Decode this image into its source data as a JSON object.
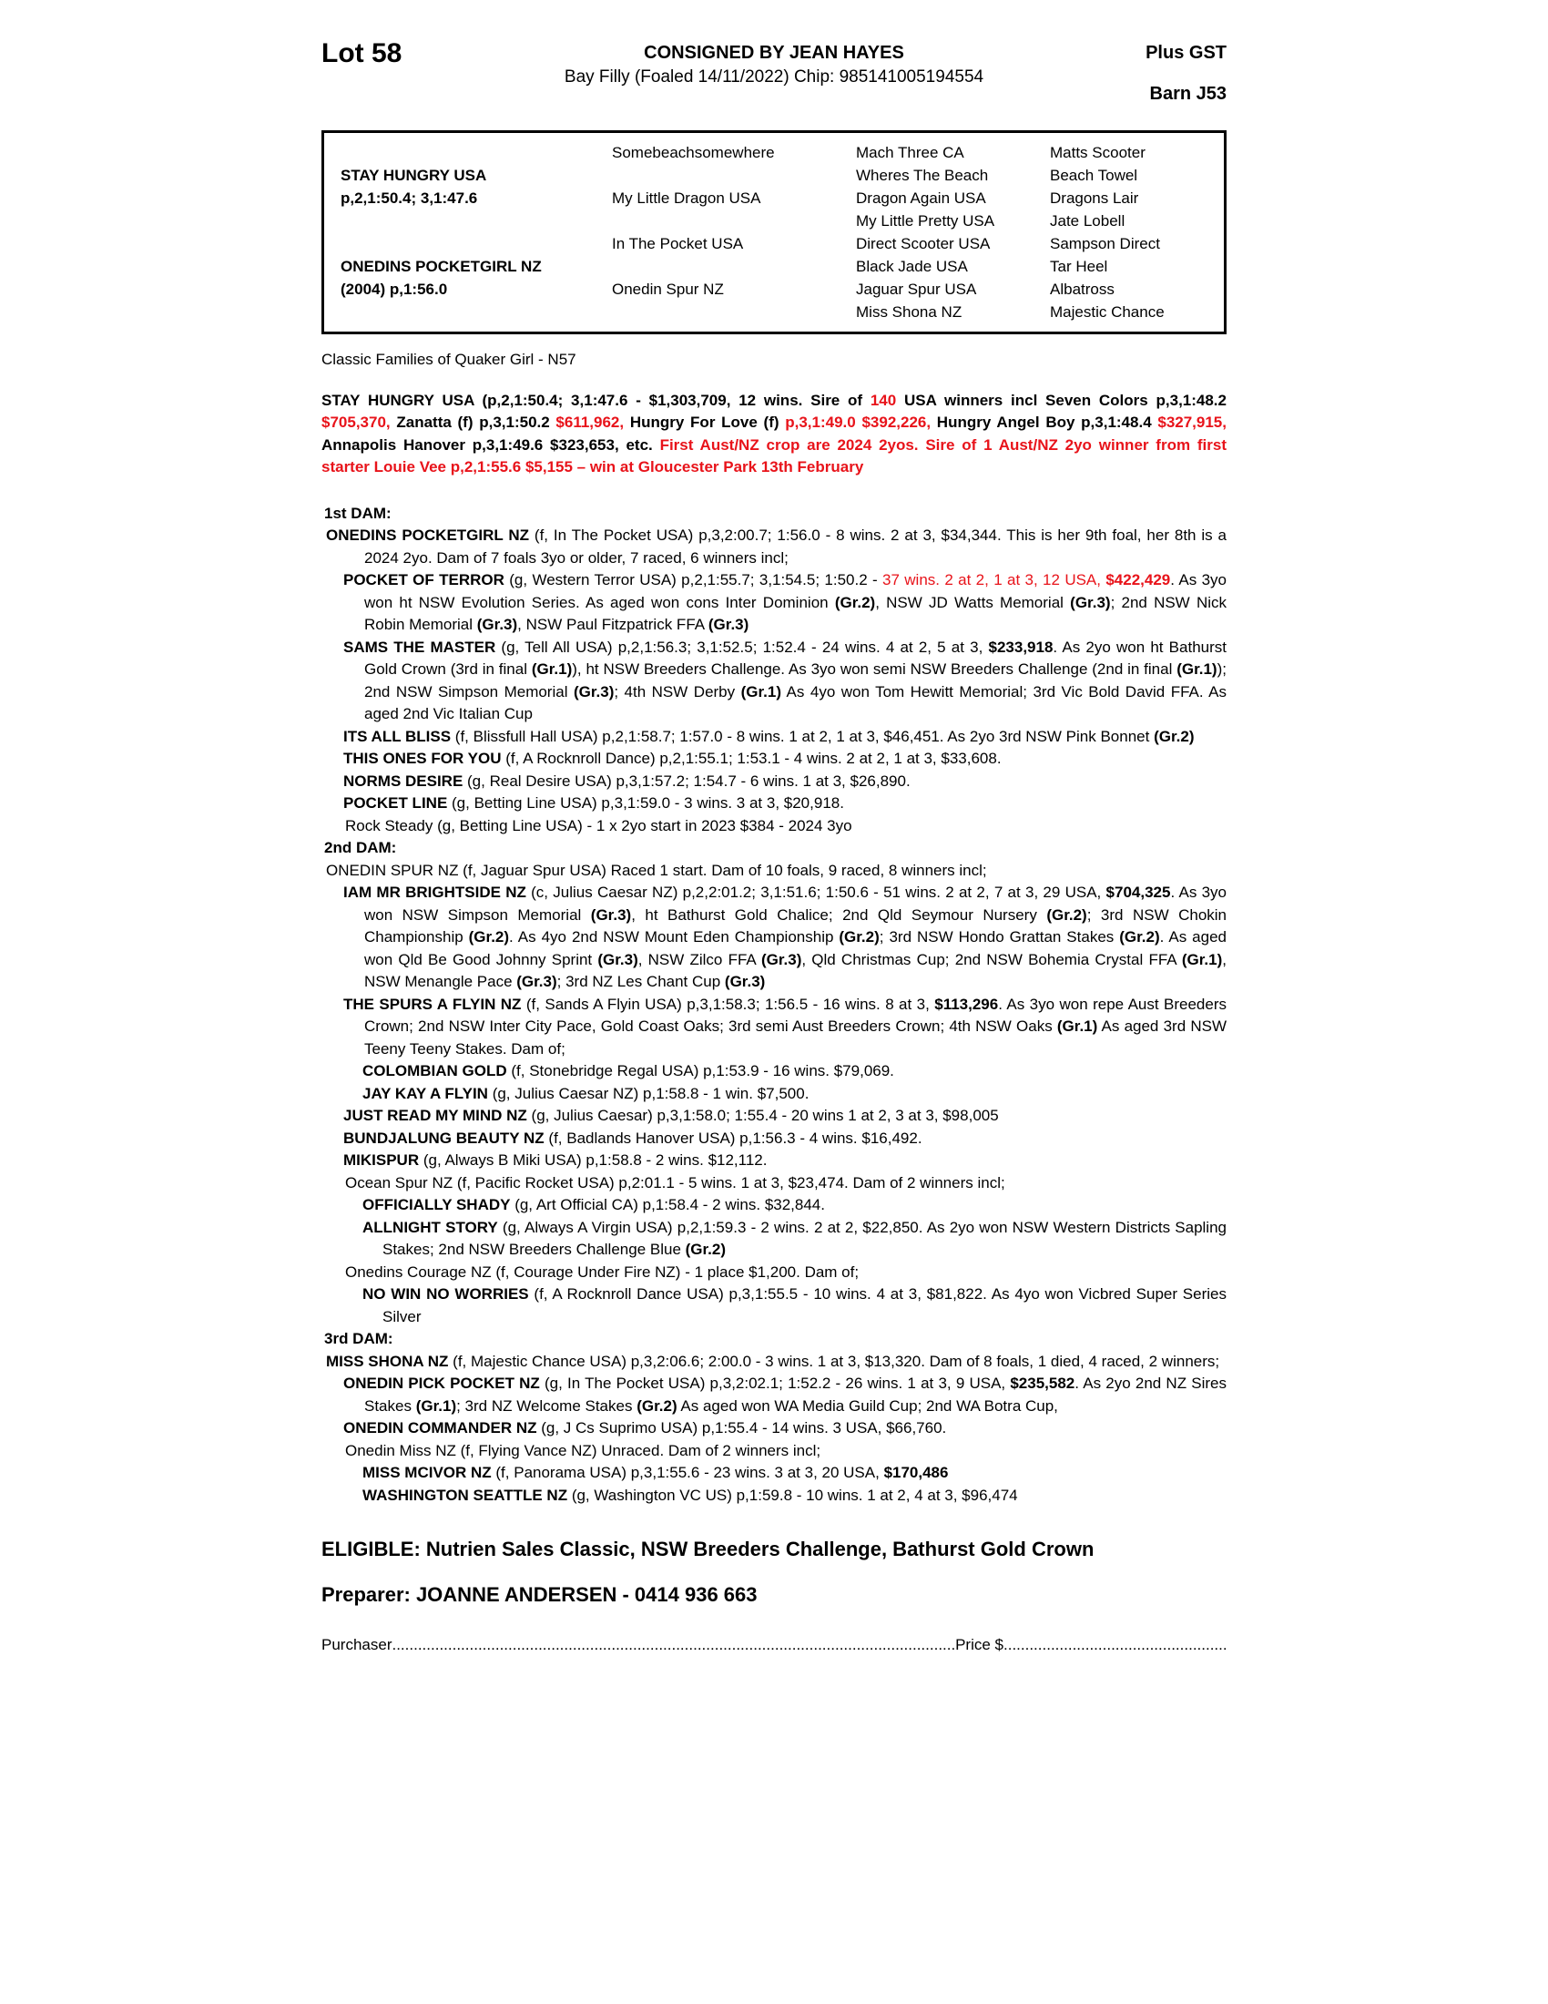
{
  "colors": {
    "accent_red": "#e8131a",
    "text": "#000000",
    "page_bg": "#ffffff"
  },
  "header": {
    "lot": "Lot 58",
    "consignor": "CONSIGNED BY JEAN HAYES",
    "gst": "Plus GST",
    "foal_info": "Bay Filly (Foaled 14/11/2022) Chip: 985141005194554",
    "barn": "Barn J53"
  },
  "pedigree": {
    "rows": [
      [
        "",
        "Somebeachsomewhere",
        "Mach Three CA",
        "Matts Scooter"
      ],
      [
        "STAY HUNGRY USA",
        "",
        "Wheres The Beach",
        "Beach Towel"
      ],
      [
        "p,2,1:50.4; 3,1:47.6",
        "My Little Dragon USA",
        "Dragon Again USA",
        "Dragons Lair"
      ],
      [
        "",
        "",
        "My Little Pretty USA",
        "Jate Lobell"
      ],
      [
        "",
        "In The Pocket USA",
        "Direct Scooter USA",
        "Sampson Direct"
      ],
      [
        "ONEDINS POCKETGIRL NZ",
        "",
        "Black Jade USA",
        "Tar Heel"
      ],
      [
        "(2004) p,1:56.0",
        "Onedin Spur NZ",
        "Jaguar Spur USA",
        "Albatross"
      ],
      [
        "",
        "",
        "Miss Shona NZ",
        "Majestic Chance"
      ]
    ]
  },
  "paragraphs": [
    {
      "n": "classic-families-line",
      "st": "",
      "s": [
        {
          "t": "Classic Families of Quaker Girl - N57"
        }
      ]
    },
    {
      "n": "sire-summary",
      "st": "sire just mt20",
      "s": [
        {
          "t": "STAY HUNGRY USA (p,2,1:50.4; 3,1:47.6 - $1,303,709, 12 wins. Sire of "
        },
        {
          "t": "140",
          "r": true
        },
        {
          "t": " USA winners incl Seven Colors p,3,1:48.2 "
        },
        {
          "t": "$705,370,",
          "r": true
        },
        {
          "t": " Zanatta (f) p,3,1:50.2 "
        },
        {
          "t": "$611,962,",
          "r": true
        },
        {
          "t": " Hungry For Love (f) "
        },
        {
          "t": "p,3,1:49.0 $392,226,",
          "r": true
        },
        {
          "t": " Hungry Angel Boy p,3,1:48.4 "
        },
        {
          "t": "$327,915,",
          "r": true
        },
        {
          "t": " Annapolis Hanover p,3,1:49.6 $323,653, etc. "
        },
        {
          "t": "First Aust/NZ crop are 2024 2yos. Sire of 1 Aust/NZ 2yo winner from first starter Louie Vee p,2,1:55.6 $5,155 – win at Gloucester Park 13th February",
          "r": true
        }
      ]
    },
    {
      "n": "dam1-heading",
      "st": "damhead mt26",
      "s": [
        {
          "t": "1st DAM:",
          "b": true
        }
      ]
    },
    {
      "n": "dam1-onedins-pocketgirl",
      "st": "L1 just",
      "s": [
        {
          "t": "ONEDINS POCKETGIRL NZ",
          "b": true
        },
        {
          "t": " (f, In The Pocket USA) p,3,2:00.7; 1:56.0 - 8 wins. 2 at 3, $34,344. This is her 9th foal, her 8th is a 2024 2yo. Dam of 7 foals 3yo or older, 7 raced, 6 winners incl;"
        }
      ]
    },
    {
      "n": "progeny-pocket-of-terror",
      "st": "L2 just",
      "s": [
        {
          "t": "POCKET OF TERROR",
          "b": true
        },
        {
          "t": " (g, Western Terror USA) p,2,1:55.7; 3,1:54.5; 1:50.2 - "
        },
        {
          "t": "37 wins. 2 at 2, 1 at 3, 12 USA, ",
          "r": true
        },
        {
          "t": "$422,429",
          "b": true,
          "r": true
        },
        {
          "t": ". As 3yo won ht NSW Evolution Series. As aged won cons Inter Dominion "
        },
        {
          "t": "(Gr.2)",
          "b": true
        },
        {
          "t": ", NSW JD Watts Memorial "
        },
        {
          "t": "(Gr.3)",
          "b": true
        },
        {
          "t": "; 2nd NSW Nick Robin Memorial "
        },
        {
          "t": "(Gr.3)",
          "b": true
        },
        {
          "t": ", NSW Paul Fitzpatrick FFA "
        },
        {
          "t": "(Gr.3)",
          "b": true
        }
      ]
    },
    {
      "n": "progeny-sams-the-master",
      "st": "L2 just",
      "s": [
        {
          "t": "SAMS THE MASTER",
          "b": true
        },
        {
          "t": " (g, Tell All USA) p,2,1:56.3; 3,1:52.5; 1:52.4 - 24 wins. 4 at 2, 5 at 3, "
        },
        {
          "t": "$233,918",
          "b": true
        },
        {
          "t": ". As 2yo won ht Bathurst Gold Crown (3rd in final "
        },
        {
          "t": "(Gr.1)",
          "b": true
        },
        {
          "t": "), ht NSW Breeders Challenge. As 3yo won semi NSW Breeders Challenge (2nd in final "
        },
        {
          "t": "(Gr.1)",
          "b": true
        },
        {
          "t": "); 2nd NSW Simpson Memorial "
        },
        {
          "t": "(Gr.3)",
          "b": true
        },
        {
          "t": "; 4th NSW Derby "
        },
        {
          "t": "(Gr.1)",
          "b": true
        },
        {
          "t": " As 4yo won Tom Hewitt Memorial; 3rd Vic Bold David FFA. As aged 2nd Vic Italian Cup"
        }
      ]
    },
    {
      "n": "progeny-its-all-bliss",
      "st": "L2 just",
      "s": [
        {
          "t": "ITS ALL BLISS",
          "b": true
        },
        {
          "t": " (f, Blissfull Hall USA) p,2,1:58.7; 1:57.0 - 8 wins. 1 at 2, 1 at 3, $46,451. As 2yo 3rd NSW Pink Bonnet "
        },
        {
          "t": "(Gr.2)",
          "b": true
        }
      ]
    },
    {
      "n": "progeny-this-ones-for-you",
      "st": "L2",
      "s": [
        {
          "t": "THIS ONES FOR YOU",
          "b": true
        },
        {
          "t": " (f, A Rocknroll Dance) p,2,1:55.1; 1:53.1 - 4 wins. 2 at 2, 1 at 3, $33,608."
        }
      ]
    },
    {
      "n": "progeny-norms-desire",
      "st": "L2",
      "s": [
        {
          "t": "NORMS DESIRE",
          "b": true
        },
        {
          "t": " (g, Real Desire USA) p,3,1:57.2; 1:54.7 - 6 wins. 1 at 3, $26,890."
        }
      ]
    },
    {
      "n": "progeny-pocket-line",
      "st": "L2",
      "s": [
        {
          "t": "POCKET LINE",
          "b": true
        },
        {
          "t": " (g, Betting Line USA) p,3,1:59.0 - 3 wins. 3 at 3, $20,918."
        }
      ]
    },
    {
      "n": "progeny-rock-steady",
      "st": "L2p",
      "s": [
        {
          "t": "Rock Steady (g, Betting Line USA) - 1 x 2yo start in 2023 $384 - 2024 3yo"
        }
      ]
    },
    {
      "n": "dam2-heading",
      "st": "damhead",
      "s": [
        {
          "t": "2nd DAM:",
          "b": true
        }
      ]
    },
    {
      "n": "dam2-onedin-spur",
      "st": "L1",
      "s": [
        {
          "t": "ONEDIN SPUR NZ (f, Jaguar Spur USA) Raced 1 start. Dam of 10 foals, 9 raced, 8 winners incl;"
        }
      ]
    },
    {
      "n": "progeny-iam-mr-brightside",
      "st": "L2 just",
      "s": [
        {
          "t": "IAM MR BRIGHTSIDE NZ",
          "b": true
        },
        {
          "t": " (c, Julius Caesar NZ) p,2,2:01.2; 3,1:51.6; 1:50.6 - 51 wins. 2 at 2, 7 at 3, 29 USA, "
        },
        {
          "t": "$704,325",
          "b": true
        },
        {
          "t": ". As 3yo won NSW Simpson Memorial "
        },
        {
          "t": "(Gr.3)",
          "b": true
        },
        {
          "t": ", ht Bathurst Gold Chalice; 2nd Qld Seymour Nursery "
        },
        {
          "t": "(Gr.2)",
          "b": true
        },
        {
          "t": "; 3rd NSW Chokin Championship "
        },
        {
          "t": "(Gr.2)",
          "b": true
        },
        {
          "t": ". As 4yo 2nd NSW Mount Eden Championship "
        },
        {
          "t": "(Gr.2)",
          "b": true
        },
        {
          "t": "; 3rd NSW Hondo Grattan Stakes "
        },
        {
          "t": "(Gr.2)",
          "b": true
        },
        {
          "t": ". As aged won Qld Be Good Johnny Sprint "
        },
        {
          "t": "(Gr.3)",
          "b": true
        },
        {
          "t": ", NSW Zilco FFA "
        },
        {
          "t": "(Gr.3)",
          "b": true
        },
        {
          "t": ", Qld Christmas Cup; 2nd NSW Bohemia Crystal FFA "
        },
        {
          "t": "(Gr.1)",
          "b": true
        },
        {
          "t": ", NSW Menangle Pace "
        },
        {
          "t": "(Gr.3)",
          "b": true
        },
        {
          "t": "; 3rd NZ Les Chant Cup "
        },
        {
          "t": "(Gr.3)",
          "b": true
        }
      ]
    },
    {
      "n": "progeny-the-spurs-a-flyin",
      "st": "L2 just",
      "s": [
        {
          "t": "THE SPURS A FLYIN NZ",
          "b": true
        },
        {
          "t": " (f, Sands A Flyin USA) p,3,1:58.3; 1:56.5 - 16 wins. 8 at 3, "
        },
        {
          "t": "$113,296",
          "b": true
        },
        {
          "t": ". As 3yo won repe Aust Breeders Crown; 2nd NSW Inter City Pace, Gold Coast Oaks; 3rd semi Aust Breeders Crown; 4th NSW Oaks "
        },
        {
          "t": "(Gr.1)",
          "b": true
        },
        {
          "t": " As aged 3rd NSW Teeny Teeny Stakes. Dam of;"
        }
      ]
    },
    {
      "n": "progeny-colombian-gold",
      "st": "L3",
      "s": [
        {
          "t": "COLOMBIAN GOLD",
          "b": true
        },
        {
          "t": " (f, Stonebridge Regal USA) p,1:53.9 - 16 wins. $79,069."
        }
      ]
    },
    {
      "n": "progeny-jay-kay-a-flyin",
      "st": "L3",
      "s": [
        {
          "t": "JAY KAY A FLYIN",
          "b": true
        },
        {
          "t": " (g, Julius Caesar NZ) p,1:58.8 - 1 win. $7,500."
        }
      ]
    },
    {
      "n": "progeny-just-read-my-mind",
      "st": "L2",
      "s": [
        {
          "t": "JUST READ MY MIND NZ",
          "b": true
        },
        {
          "t": " (g, Julius Caesar) p,3,1:58.0; 1:55.4 - 20 wins 1 at 2, 3 at 3, $98,005"
        }
      ]
    },
    {
      "n": "progeny-bundjalung-beauty",
      "st": "L2",
      "s": [
        {
          "t": "BUNDJALUNG BEAUTY NZ",
          "b": true
        },
        {
          "t": " (f, Badlands Hanover USA) p,1:56.3 - 4 wins. $16,492."
        }
      ]
    },
    {
      "n": "progeny-mikispur",
      "st": "L2",
      "s": [
        {
          "t": "MIKISPUR",
          "b": true
        },
        {
          "t": " (g, Always B Miki USA) p,1:58.8 - 2 wins. $12,112."
        }
      ]
    },
    {
      "n": "progeny-ocean-spur",
      "st": "L2p",
      "s": [
        {
          "t": "Ocean Spur NZ (f, Pacific Rocket USA) p,2:01.1 - 5 wins. 1 at 3, $23,474. Dam of 2 winners incl;"
        }
      ]
    },
    {
      "n": "progeny-officially-shady",
      "st": "L3",
      "s": [
        {
          "t": "OFFICIALLY SHADY",
          "b": true
        },
        {
          "t": " (g, Art Official CA) p,1:58.4 - 2 wins. $32,844."
        }
      ]
    },
    {
      "n": "progeny-allnight-story",
      "st": "L3 just",
      "s": [
        {
          "t": "ALLNIGHT STORY",
          "b": true
        },
        {
          "t": " (g, Always A Virgin USA) p,2,1:59.3 - 2 wins. 2 at 2, $22,850. As 2yo won NSW Western Districts Sapling Stakes; 2nd NSW Breeders Challenge Blue "
        },
        {
          "t": "(Gr.2)",
          "b": true
        }
      ]
    },
    {
      "n": "progeny-onedins-courage",
      "st": "L2p",
      "s": [
        {
          "t": "Onedins Courage NZ (f, Courage Under Fire NZ) - 1 place $1,200. Dam of;"
        }
      ]
    },
    {
      "n": "progeny-no-win-no-worries",
      "st": "L3 just",
      "s": [
        {
          "t": "NO WIN NO WORRIES",
          "b": true
        },
        {
          "t": " (f, A Rocknroll Dance USA) p,3,1:55.5 - 10 wins. 4 at 3, $81,822. As 4yo won Vicbred Super Series Silver"
        }
      ]
    },
    {
      "n": "dam3-heading",
      "st": "damhead",
      "s": [
        {
          "t": "3rd DAM:",
          "b": true
        }
      ]
    },
    {
      "n": "dam3-miss-shona",
      "st": "L1 just",
      "s": [
        {
          "t": "MISS SHONA NZ",
          "b": true
        },
        {
          "t": " (f, Majestic Chance USA) p,3,2:06.6; 2:00.0 - 3 wins. 1 at 3, $13,320. Dam of 8 foals, 1 died, 4 raced, 2 winners;"
        }
      ]
    },
    {
      "n": "progeny-onedin-pick-pocket",
      "st": "L2 just",
      "s": [
        {
          "t": "ONEDIN PICK POCKET NZ",
          "b": true
        },
        {
          "t": " (g, In The Pocket USA) p,3,2:02.1; 1:52.2 - 26 wins. 1 at 3, 9 USA, "
        },
        {
          "t": "$235,582",
          "b": true
        },
        {
          "t": ". As 2yo 2nd NZ Sires Stakes "
        },
        {
          "t": "(Gr.1)",
          "b": true
        },
        {
          "t": "; 3rd NZ Welcome Stakes "
        },
        {
          "t": "(Gr.2)",
          "b": true
        },
        {
          "t": " As aged won WA Media Guild Cup; 2nd WA Botra Cup,"
        }
      ]
    },
    {
      "n": "progeny-onedin-commander",
      "st": "L2",
      "s": [
        {
          "t": "ONEDIN COMMANDER NZ",
          "b": true
        },
        {
          "t": " (g, J Cs Suprimo USA) p,1:55.4 - 14 wins. 3 USA, $66,760."
        }
      ]
    },
    {
      "n": "progeny-onedin-miss",
      "st": "L2p",
      "s": [
        {
          "t": "Onedin Miss NZ (f, Flying Vance NZ) Unraced. Dam of 2 winners incl;"
        }
      ]
    },
    {
      "n": "progeny-miss-mcivor",
      "st": "L3",
      "s": [
        {
          "t": "MISS MCIVOR NZ",
          "b": true
        },
        {
          "t": " (f, Panorama USA) p,3,1:55.6 - 23 wins. 3 at 3, 20 USA, "
        },
        {
          "t": "$170,486",
          "b": true
        }
      ]
    },
    {
      "n": "progeny-washington-seattle",
      "st": "L3",
      "s": [
        {
          "t": "WASHINGTON SEATTLE NZ",
          "b": true
        },
        {
          "t": " (g, Washington VC US) p,1:59.8 - 10 wins. 1 at 2, 4 at 3, $96,474"
        }
      ]
    }
  ],
  "footer": {
    "eligible": "ELIGIBLE: Nutrien Sales Classic, NSW Breeders Challenge, Bathurst Gold Crown",
    "preparer": "Preparer: JOANNE ANDERSEN - 0414 936 663",
    "purchaser_label": "Purchaser",
    "leader1": "........................................................................................................................................................",
    "price_label": "Price $",
    "leader2": "............................................................"
  }
}
